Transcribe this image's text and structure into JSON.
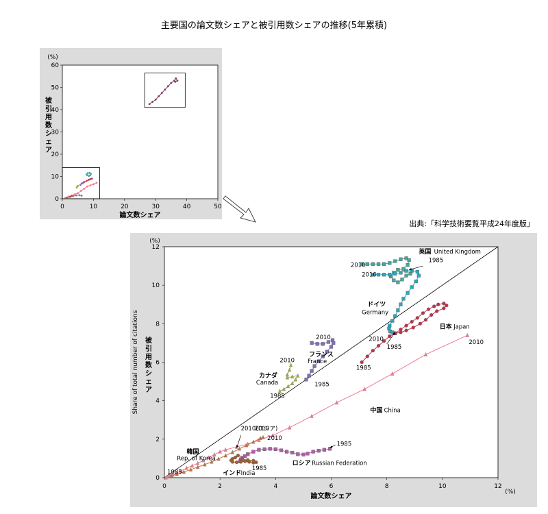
{
  "page": {
    "title": "主要国の論文数シェアと被引用数シェアの推移(5年累積)",
    "source": "出典:「科学技術要覧平成24年度版」"
  },
  "chart_data": [
    {
      "type": "scatter",
      "id": "overview",
      "title": "",
      "xlabel": "論文数シェア",
      "ylabel": "被引用数シェア",
      "y_unit": "(%)",
      "xlim": [
        0,
        50
      ],
      "ylim": [
        0,
        60
      ],
      "xticks": [
        0,
        10,
        20,
        30,
        40,
        50
      ],
      "yticks": [
        0,
        10,
        20,
        30,
        40,
        50,
        60
      ],
      "grid": false,
      "zoom_boxes": [
        {
          "x": [
            0,
            12
          ],
          "y": [
            0,
            14
          ]
        },
        {
          "x": [
            26.5,
            39.5
          ],
          "y": [
            41,
            56.5
          ]
        }
      ],
      "series": [
        {
          "color": "#7a3a5a",
          "points": [
            [
              28,
              42.5
            ],
            [
              29,
              43.5
            ],
            [
              30,
              44.5
            ],
            [
              31,
              46
            ],
            [
              32,
              47.5
            ],
            [
              33,
              49
            ],
            [
              34,
              50.5
            ],
            [
              35,
              52
            ],
            [
              36,
              53
            ],
            [
              36.5,
              54
            ],
            [
              37,
              53
            ],
            [
              36.3,
              52.5
            ]
          ]
        },
        {
          "color": "#4aa6a0",
          "points": [
            [
              7.8,
              11
            ],
            [
              8.2,
              11.5
            ],
            [
              8.8,
              11.6
            ],
            [
              9.2,
              11.2
            ],
            [
              8.9,
              10.5
            ],
            [
              8.5,
              10.2
            ],
            [
              8,
              10.6
            ]
          ]
        },
        {
          "color": "#c0304a",
          "points": [
            [
              6.5,
              7
            ],
            [
              7,
              7.5
            ],
            [
              7.8,
              8
            ],
            [
              8.5,
              8.5
            ],
            [
              9,
              8.8
            ],
            [
              9.5,
              9
            ]
          ]
        },
        {
          "color": "#8070b8",
          "points": [
            [
              5.8,
              6.2
            ],
            [
              6.2,
              6.8
            ],
            [
              6.6,
              7
            ]
          ]
        },
        {
          "color": "#9ab040",
          "points": [
            [
              4.6,
              5
            ],
            [
              4.8,
              5.5
            ],
            [
              5,
              5.8
            ]
          ]
        },
        {
          "color": "#f07890",
          "points": [
            [
              1,
              0.5
            ],
            [
              2,
              1
            ],
            [
              3,
              1.5
            ],
            [
              4,
              2
            ],
            [
              5,
              2.5
            ],
            [
              6,
              3.5
            ],
            [
              7,
              4.5
            ],
            [
              8,
              5.5
            ],
            [
              9,
              6
            ],
            [
              10,
              6.5
            ],
            [
              11,
              7.2
            ]
          ]
        },
        {
          "color": "#b05fa8",
          "points": [
            [
              3.5,
              1.2
            ],
            [
              4.5,
              1.5
            ],
            [
              5.5,
              1.6
            ],
            [
              6.2,
              1.4
            ]
          ]
        },
        {
          "color": "#a06030",
          "points": [
            [
              1.5,
              0.4
            ],
            [
              2.5,
              0.8
            ],
            [
              3,
              1.2
            ]
          ]
        }
      ]
    },
    {
      "type": "line",
      "id": "detail",
      "title": "",
      "xlabel": "論文数シェア",
      "ylabel": "被引用数シェア",
      "ylabel_en": "Share of total number of citations",
      "x_unit": "(%)",
      "y_unit": "(%)",
      "xlim": [
        0,
        12
      ],
      "ylim": [
        0,
        12
      ],
      "xticks": [
        0,
        2,
        4,
        6,
        8,
        10,
        12
      ],
      "yticks": [
        0,
        2,
        4,
        6,
        8,
        10,
        12
      ],
      "grid": false,
      "diagonal": [
        [
          0,
          0
        ],
        [
          12,
          12
        ]
      ],
      "series": [
        {
          "country": "uk",
          "color": "#48a89a",
          "marker": "square",
          "points": [
            [
              7.1,
              11.1
            ],
            [
              7.3,
              11.1
            ],
            [
              7.5,
              11.1
            ],
            [
              7.7,
              11.1
            ],
            [
              7.9,
              11.1
            ],
            [
              8.1,
              11.15
            ],
            [
              8.3,
              11.25
            ],
            [
              8.5,
              11.35
            ],
            [
              8.7,
              11.4
            ],
            [
              8.8,
              11.3
            ],
            [
              8.75,
              11.05
            ],
            [
              8.6,
              10.85
            ],
            [
              8.4,
              10.8
            ],
            [
              8.25,
              10.65
            ],
            [
              8.15,
              10.45
            ],
            [
              8.25,
              10.25
            ],
            [
              8.4,
              10.15
            ],
            [
              8.55,
              10.3
            ],
            [
              8.7,
              10.5
            ],
            [
              8.85,
              10.6
            ]
          ]
        },
        {
          "country": "germany",
          "color": "#2aa8c0",
          "marker": "square",
          "points": [
            [
              7.5,
              10.55
            ],
            [
              7.7,
              10.55
            ],
            [
              7.9,
              10.55
            ],
            [
              8.1,
              10.55
            ],
            [
              8.3,
              10.6
            ],
            [
              8.5,
              10.65
            ],
            [
              8.7,
              10.75
            ],
            [
              8.9,
              10.75
            ],
            [
              9.1,
              10.7
            ],
            [
              9.15,
              10.5
            ],
            [
              9.05,
              10.2
            ],
            [
              8.9,
              9.9
            ],
            [
              8.75,
              9.6
            ],
            [
              8.6,
              9.3
            ],
            [
              8.5,
              9.0
            ],
            [
              8.4,
              8.7
            ],
            [
              8.3,
              8.4
            ],
            [
              8.2,
              8.15
            ],
            [
              8.1,
              7.9
            ],
            [
              8.08,
              7.75
            ],
            [
              8.12,
              7.6
            ],
            [
              8.2,
              7.55
            ],
            [
              8.3,
              7.5
            ]
          ]
        },
        {
          "country": "japan",
          "color": "#c0304a",
          "marker": "circle",
          "points": [
            [
              7.1,
              6.0
            ],
            [
              7.3,
              6.3
            ],
            [
              7.5,
              6.6
            ],
            [
              7.7,
              6.85
            ],
            [
              7.9,
              7.1
            ],
            [
              8.1,
              7.35
            ],
            [
              8.3,
              7.5
            ],
            [
              8.5,
              7.7
            ],
            [
              8.7,
              7.9
            ],
            [
              8.9,
              8.1
            ],
            [
              9.1,
              8.3
            ],
            [
              9.3,
              8.55
            ],
            [
              9.5,
              8.75
            ],
            [
              9.7,
              8.9
            ],
            [
              9.85,
              9.0
            ],
            [
              10.05,
              9.05
            ],
            [
              10.15,
              8.95
            ],
            [
              10.05,
              8.8
            ],
            [
              9.8,
              8.65
            ],
            [
              9.6,
              8.45
            ],
            [
              9.4,
              8.2
            ],
            [
              9.2,
              8.0
            ],
            [
              8.95,
              7.8
            ],
            [
              8.7,
              7.65
            ],
            [
              8.5,
              7.55
            ],
            [
              8.3,
              7.5
            ]
          ]
        },
        {
          "country": "france",
          "color": "#8070b8",
          "marker": "square",
          "points": [
            [
              5.3,
              7.0
            ],
            [
              5.5,
              6.95
            ],
            [
              5.7,
              6.95
            ],
            [
              5.9,
              7.05
            ],
            [
              6.05,
              7.15
            ],
            [
              6.08,
              7.0
            ],
            [
              6.0,
              6.8
            ],
            [
              5.85,
              6.55
            ],
            [
              5.7,
              6.3
            ],
            [
              5.55,
              6.05
            ],
            [
              5.4,
              5.8
            ],
            [
              5.3,
              5.55
            ],
            [
              5.2,
              5.3
            ],
            [
              5.1,
              5.1
            ]
          ]
        },
        {
          "country": "canada",
          "color": "#9ab040",
          "marker": "triangle",
          "points": [
            [
              4.55,
              5.85
            ],
            [
              4.5,
              5.6
            ],
            [
              4.42,
              5.35
            ],
            [
              4.42,
              5.2
            ],
            [
              4.6,
              5.25
            ],
            [
              4.8,
              5.3
            ],
            [
              4.72,
              5.1
            ],
            [
              4.6,
              4.9
            ],
            [
              4.45,
              4.75
            ],
            [
              4.3,
              4.6
            ],
            [
              4.15,
              4.5
            ]
          ]
        },
        {
          "country": "china",
          "color": "#f07890",
          "marker": "triangle",
          "points": [
            [
              0.05,
              0.0
            ],
            [
              0.1,
              0.05
            ],
            [
              0.2,
              0.1
            ],
            [
              0.3,
              0.15
            ],
            [
              0.45,
              0.25
            ],
            [
              0.6,
              0.35
            ],
            [
              0.8,
              0.5
            ],
            [
              1.0,
              0.62
            ],
            [
              1.2,
              0.75
            ],
            [
              1.4,
              0.9
            ],
            [
              1.6,
              1.05
            ],
            [
              1.8,
              1.2
            ],
            [
              2.0,
              1.35
            ],
            [
              2.2,
              1.45
            ],
            [
              2.6,
              1.6
            ],
            [
              3.0,
              1.75
            ],
            [
              3.4,
              1.95
            ],
            [
              3.9,
              2.2
            ],
            [
              4.5,
              2.6
            ],
            [
              5.3,
              3.2
            ],
            [
              6.2,
              3.9
            ],
            [
              7.2,
              4.6
            ],
            [
              8.2,
              5.4
            ],
            [
              9.4,
              6.4
            ],
            [
              10.9,
              7.4
            ]
          ]
        },
        {
          "country": "russia",
          "color": "#b05fa8",
          "marker": "square",
          "points": [
            [
              5.95,
              1.5
            ],
            [
              5.75,
              1.45
            ],
            [
              5.55,
              1.4
            ],
            [
              5.35,
              1.35
            ],
            [
              5.15,
              1.25
            ],
            [
              5.0,
              1.2
            ],
            [
              4.8,
              1.22
            ],
            [
              4.6,
              1.3
            ],
            [
              4.4,
              1.35
            ],
            [
              4.2,
              1.42
            ],
            [
              4.0,
              1.48
            ],
            [
              3.8,
              1.5
            ],
            [
              3.6,
              1.48
            ],
            [
              3.4,
              1.45
            ],
            [
              3.2,
              1.35
            ],
            [
              3.0,
              1.22
            ],
            [
              2.9,
              1.12
            ],
            [
              2.8,
              1.05
            ],
            [
              2.75,
              0.95
            ],
            [
              2.72,
              0.85
            ]
          ]
        },
        {
          "country": "korea",
          "color": "#c0703a",
          "marker": "triangle",
          "points": [
            [
              0.25,
              0.1
            ],
            [
              0.45,
              0.18
            ],
            [
              0.7,
              0.3
            ],
            [
              0.95,
              0.42
            ],
            [
              1.2,
              0.55
            ],
            [
              1.45,
              0.68
            ],
            [
              1.7,
              0.82
            ],
            [
              1.95,
              0.98
            ],
            [
              2.2,
              1.15
            ],
            [
              2.45,
              1.32
            ],
            [
              2.7,
              1.5
            ],
            [
              2.95,
              1.68
            ],
            [
              3.2,
              1.86
            ],
            [
              3.45,
              2.05
            ],
            [
              3.55,
              2.1
            ]
          ]
        },
        {
          "country": "india",
          "color": "#a06030",
          "marker": "circle",
          "points": [
            [
              2.65,
              1.15
            ],
            [
              2.55,
              1.05
            ],
            [
              2.45,
              0.98
            ],
            [
              2.4,
              0.9
            ],
            [
              2.45,
              0.82
            ],
            [
              2.6,
              0.8
            ],
            [
              2.75,
              0.82
            ],
            [
              2.9,
              0.85
            ],
            [
              3.05,
              0.82
            ],
            [
              3.2,
              0.78
            ],
            [
              3.3,
              0.8
            ],
            [
              3.2,
              0.88
            ],
            [
              3.0,
              0.92
            ],
            [
              2.8,
              0.95
            ]
          ]
        }
      ],
      "labels": {
        "uk": {
          "ja": "英国",
          "en": "United Kingdom",
          "start": "1985",
          "end": "2010"
        },
        "germany": {
          "ja": "ドイツ",
          "en": "Germany",
          "start": "1985",
          "end": "2010"
        },
        "japan": {
          "ja": "日本",
          "en": "Japan",
          "start": "1985",
          "end": "2010"
        },
        "france": {
          "ja": "フランス",
          "en": "France",
          "start": "1985",
          "end": "2010"
        },
        "canada": {
          "ja": "カナダ",
          "en": "Canada",
          "start": "1985",
          "end": "2010"
        },
        "china": {
          "ja": "中国",
          "en": "China",
          "end": "2010"
        },
        "russia": {
          "ja": "ロシア",
          "en": "Russian Federation",
          "start": "1985"
        },
        "korea": {
          "ja": "韓国",
          "en": "Rep. of Korea",
          "start": "1985",
          "end": "2010(ロシア)"
        },
        "india": {
          "ja": "インド",
          "en": "India",
          "start": "1985",
          "end": "2010"
        }
      }
    }
  ]
}
